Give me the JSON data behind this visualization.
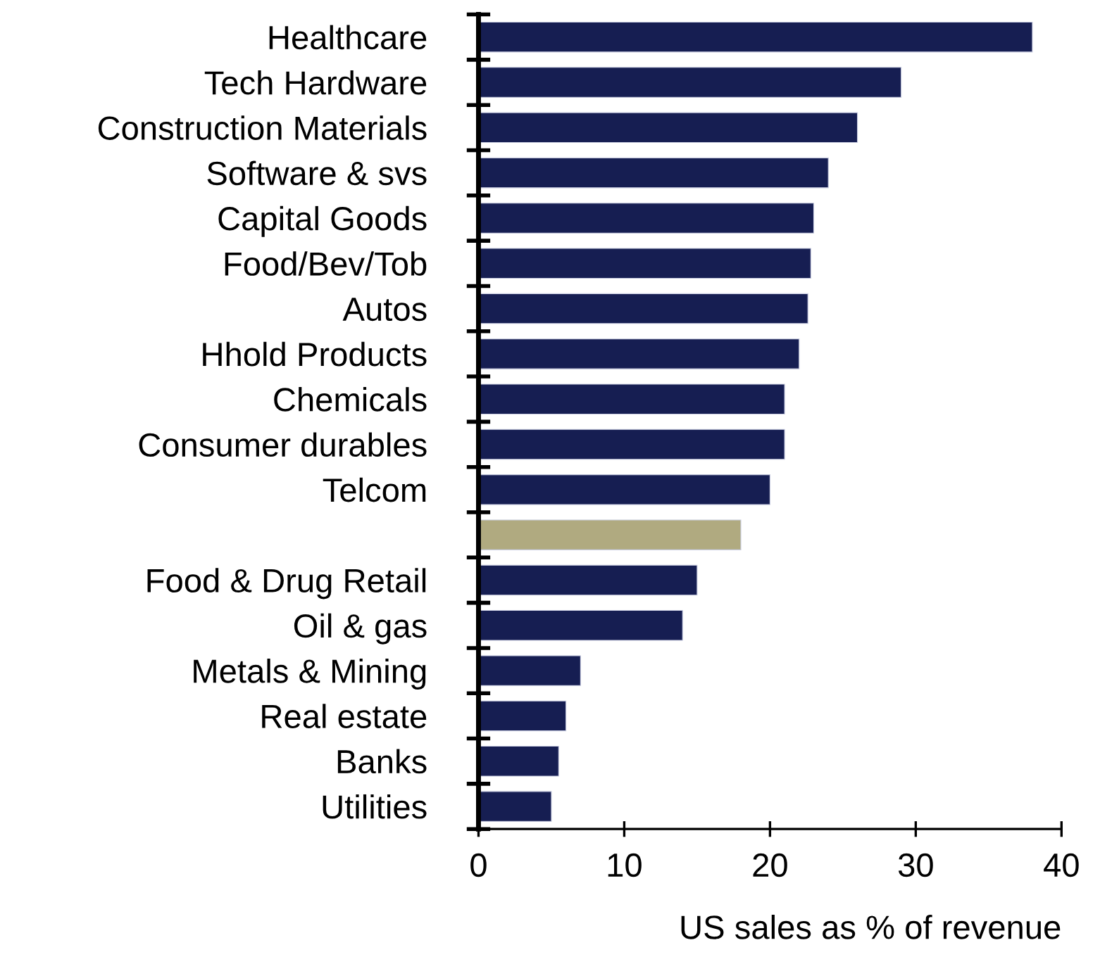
{
  "chart_data": {
    "type": "bar",
    "orientation": "horizontal",
    "categories": [
      "Healthcare",
      "Tech Hardware",
      "Construction Materials",
      "Software & svs",
      "Capital Goods",
      "Food/Bev/Tob",
      "Autos",
      "Hhold Products",
      "Chemicals",
      "Consumer durables",
      "Telcom",
      null,
      "Food & Drug Retail",
      "Oil & gas",
      "Metals & Mining",
      "Real estate",
      "Banks",
      "Utilities"
    ],
    "values": [
      38,
      29,
      26,
      24,
      23,
      22.8,
      22.6,
      22,
      21,
      21,
      20,
      18,
      15,
      14,
      7,
      6,
      5.5,
      5
    ],
    "colors": [
      "#161e52",
      "#161e52",
      "#161e52",
      "#161e52",
      "#161e52",
      "#161e52",
      "#161e52",
      "#161e52",
      "#161e52",
      "#161e52",
      "#161e52",
      "#b0aa80",
      "#161e52",
      "#161e52",
      "#161e52",
      "#161e52",
      "#161e52",
      "#161e52"
    ],
    "xlim": [
      0,
      40
    ],
    "xticks": [
      0,
      10,
      20,
      30,
      40
    ],
    "xlabel": "US sales as % of revenue",
    "grid": false,
    "legend": false
  }
}
